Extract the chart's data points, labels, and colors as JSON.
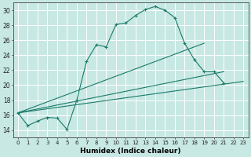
{
  "title": "",
  "xlabel": "Humidex (Indice chaleur)",
  "ylabel": "",
  "background_color": "#c8e8e4",
  "grid_color": "#ffffff",
  "line_color": "#1a7a6a",
  "xlim": [
    -0.5,
    23.5
  ],
  "ylim": [
    13,
    31
  ],
  "xticks": [
    0,
    1,
    2,
    3,
    4,
    5,
    6,
    7,
    8,
    9,
    10,
    11,
    12,
    13,
    14,
    15,
    16,
    17,
    18,
    19,
    20,
    21,
    22,
    23
  ],
  "yticks": [
    14,
    16,
    18,
    20,
    22,
    24,
    26,
    28,
    30
  ],
  "main_line": {
    "x": [
      0,
      1,
      2,
      3,
      4,
      5,
      6,
      7,
      8,
      9,
      10,
      11,
      12,
      13,
      14,
      15,
      16,
      17,
      18,
      19,
      20,
      21
    ],
    "y": [
      16.3,
      14.6,
      15.2,
      15.7,
      15.6,
      14.1,
      18.0,
      23.2,
      25.4,
      25.1,
      28.1,
      28.3,
      29.3,
      30.1,
      30.5,
      30.0,
      29.0,
      25.6,
      23.4,
      21.8,
      21.8,
      20.3
    ]
  },
  "straight_lines": [
    {
      "x": [
        0,
        19
      ],
      "y": [
        16.3,
        25.6
      ]
    },
    {
      "x": [
        0,
        21
      ],
      "y": [
        16.3,
        21.8
      ]
    },
    {
      "x": [
        0,
        23
      ],
      "y": [
        16.3,
        20.5
      ]
    }
  ]
}
